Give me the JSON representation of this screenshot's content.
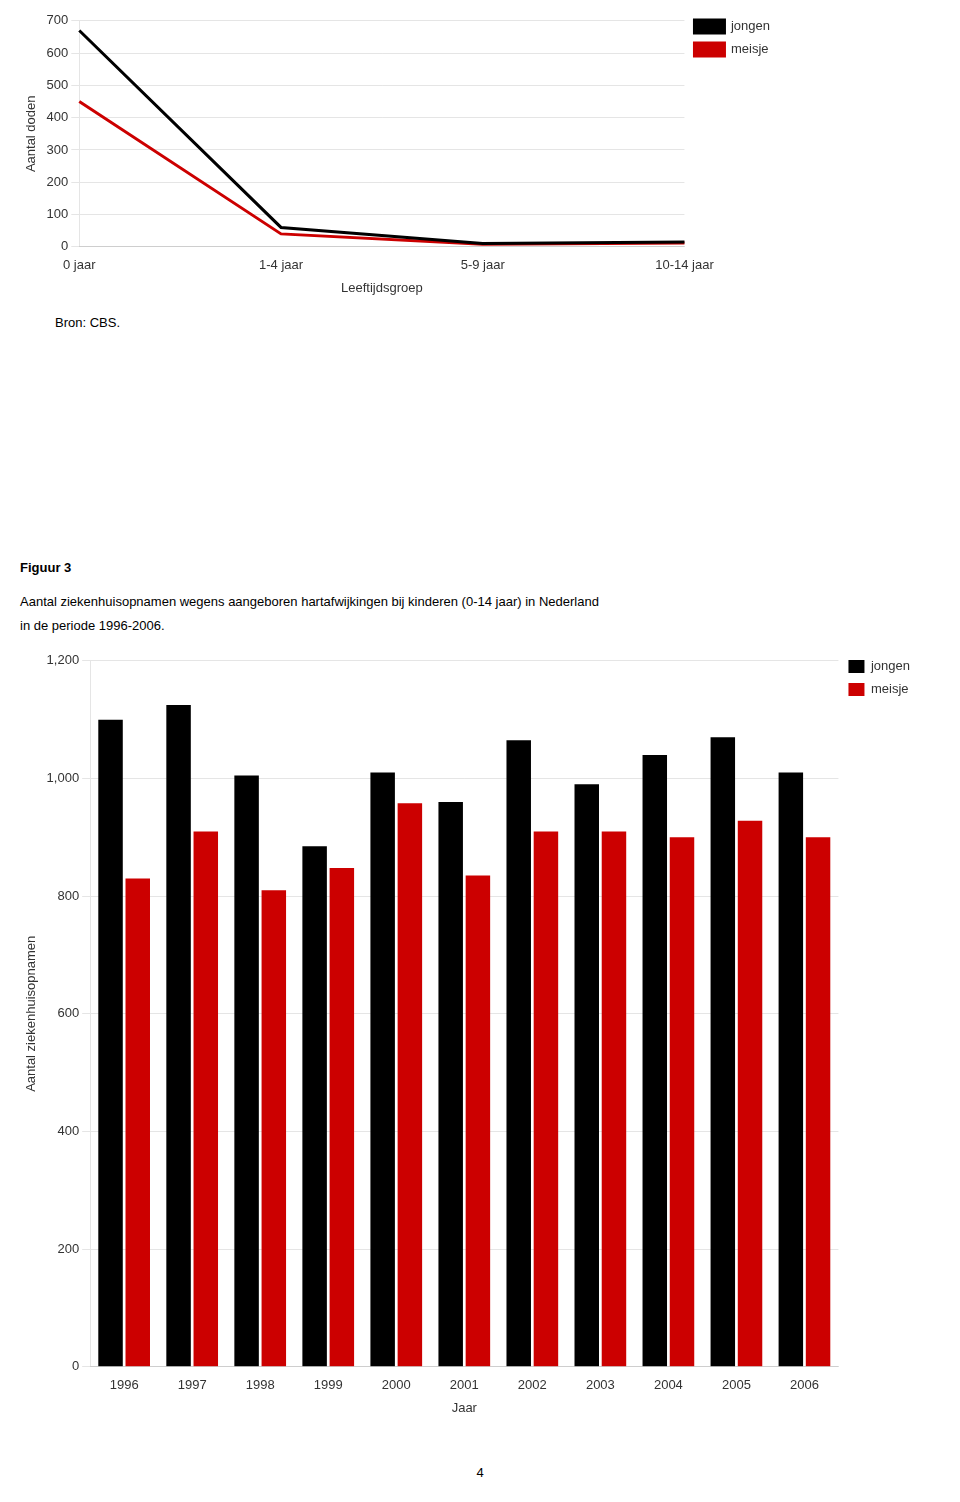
{
  "chart_data": [
    {
      "type": "line",
      "xlabel": "Leeftijdsgroep",
      "ylabel": "Aantal doden",
      "categories": [
        "0 jaar",
        "1-4 jaar",
        "5-9 jaar",
        "10-14 jaar"
      ],
      "series": [
        {
          "name": "jongen",
          "color": "#000000",
          "values": [
            670,
            60,
            10,
            15
          ]
        },
        {
          "name": "meisje",
          "color": "#cc0000",
          "values": [
            450,
            40,
            8,
            12
          ]
        }
      ],
      "ylim": [
        0,
        700
      ],
      "yticks": [
        0,
        100,
        200,
        300,
        400,
        500,
        600,
        700
      ],
      "grid": true,
      "legend": "right",
      "annotations": [
        "Bron: CBS."
      ]
    },
    {
      "type": "bar",
      "title": "Figuur 3",
      "subtitle": [
        "Aantal ziekenhuisopnamen wegens aangeboren hartafwijkingen bij kinderen (0-14 jaar) in Nederland",
        "in de periode 1996-2006."
      ],
      "xlabel": "Jaar",
      "ylabel": "Aantal ziekenhuisopnamen",
      "categories": [
        "1996",
        "1997",
        "1998",
        "1999",
        "2000",
        "2001",
        "2002",
        "2003",
        "2004",
        "2005",
        "2006"
      ],
      "series": [
        {
          "name": "jongen",
          "color": "#000000",
          "values": [
            1100,
            1125,
            1005,
            885,
            1010,
            960,
            1065,
            990,
            1040,
            1070,
            1010
          ]
        },
        {
          "name": "meisje",
          "color": "#cc0000",
          "values": [
            830,
            910,
            810,
            848,
            958,
            835,
            910,
            910,
            900,
            928,
            900
          ]
        }
      ],
      "ylim": [
        0,
        1200
      ],
      "yticks": [
        0,
        200,
        400,
        600,
        800,
        1000,
        1200
      ],
      "grid": true,
      "legend": "right",
      "annotations": [
        "4"
      ]
    }
  ]
}
